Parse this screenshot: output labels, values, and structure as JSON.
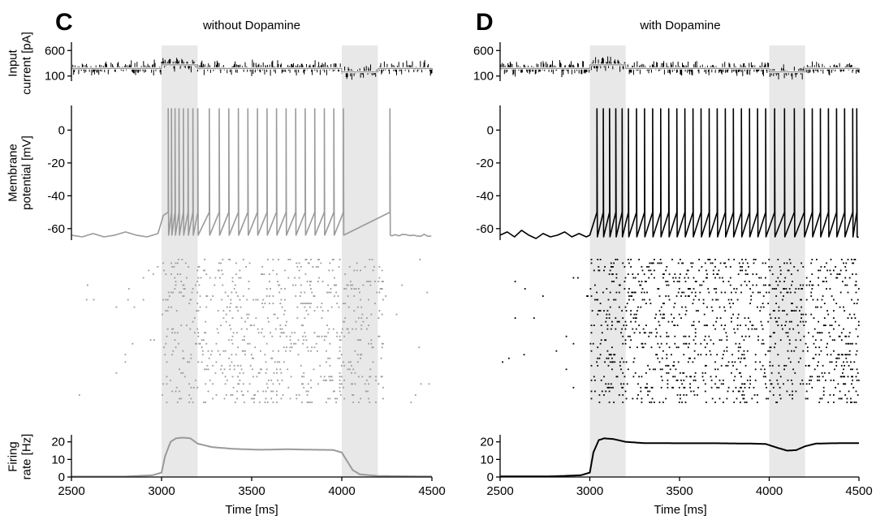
{
  "colors": {
    "without": "#9a9a9a",
    "with": "#000000",
    "shade": "#e8e8e8",
    "axis": "#000000"
  },
  "chart_data": [
    {
      "panel_label": "C",
      "title": "without Dopamine",
      "type": "line",
      "series_color": "#9a9a9a",
      "shaded_intervals_ms": [
        [
          3000,
          3200
        ],
        [
          4000,
          4200
        ]
      ],
      "subplots": [
        {
          "id": "input",
          "ylabel": [
            "Input",
            "current [pA]"
          ],
          "yticks": [
            100,
            600
          ],
          "ylim": [
            0,
            700
          ],
          "mean_level_pA": [
            [
              2500,
              250
            ],
            [
              3000,
              250
            ],
            [
              3000,
              320
            ],
            [
              3200,
              320
            ],
            [
              3200,
              250
            ],
            [
              4000,
              250
            ],
            [
              4000,
              180
            ],
            [
              4200,
              180
            ],
            [
              4200,
              250
            ],
            [
              4500,
              250
            ]
          ],
          "noise_amplitude_pA": 180
        },
        {
          "id": "membrane",
          "ylabel": [
            "Membrane",
            "potential [mV]"
          ],
          "yticks": [
            -60,
            -40,
            -20,
            0
          ],
          "ylim": [
            -67,
            15
          ],
          "rest_mV": -64,
          "spike_peak_mV": 13,
          "spike_times_ms": [
            3037,
            3055,
            3075,
            3097,
            3121,
            3147,
            3174,
            3201,
            3265,
            3320,
            3373,
            3426,
            3479,
            3532,
            3585,
            3638,
            3691,
            3744,
            3797,
            3850,
            3903,
            3956,
            4009,
            4267
          ],
          "subthreshold_trace_ms_mV": [
            [
              2500,
              -64
            ],
            [
              2560,
              -65
            ],
            [
              2620,
              -63
            ],
            [
              2680,
              -65
            ],
            [
              2740,
              -64
            ],
            [
              2800,
              -62
            ],
            [
              2860,
              -64
            ],
            [
              2920,
              -65
            ],
            [
              2980,
              -63
            ],
            [
              3010,
              -52
            ]
          ]
        },
        {
          "id": "raster",
          "type": "scatter",
          "n_neurons": 40,
          "active_interval_ms": [
            3000,
            4230
          ],
          "active_rate_hz": 15,
          "background_rate_hz": 1.2
        },
        {
          "id": "rate",
          "ylabel": [
            "Firing",
            "rate [Hz]"
          ],
          "xlabel": "Time [ms]",
          "xticks": [
            2500,
            3000,
            3500,
            4000,
            4500
          ],
          "xlim": [
            2500,
            4500
          ],
          "yticks": [
            0,
            10,
            20
          ],
          "ylim": [
            0,
            24
          ],
          "points": [
            [
              2500,
              0.3
            ],
            [
              2800,
              0.3
            ],
            [
              2950,
              1.0
            ],
            [
              3000,
              2.5
            ],
            [
              3020,
              12.0
            ],
            [
              3050,
              20.0
            ],
            [
              3080,
              22.0
            ],
            [
              3120,
              22.4
            ],
            [
              3160,
              22.0
            ],
            [
              3200,
              19.0
            ],
            [
              3280,
              17.0
            ],
            [
              3400,
              16.0
            ],
            [
              3550,
              15.5
            ],
            [
              3700,
              15.8
            ],
            [
              3850,
              15.5
            ],
            [
              3950,
              15.4
            ],
            [
              4000,
              14.0
            ],
            [
              4030,
              9.0
            ],
            [
              4060,
              4.0
            ],
            [
              4100,
              1.5
            ],
            [
              4200,
              0.6
            ],
            [
              4500,
              0.3
            ]
          ]
        }
      ]
    },
    {
      "panel_label": "D",
      "title": "with Dopamine",
      "type": "line",
      "series_color": "#000000",
      "shaded_intervals_ms": [
        [
          3000,
          3200
        ],
        [
          4000,
          4200
        ]
      ],
      "subplots": [
        {
          "id": "input",
          "yticks": [
            100,
            600
          ],
          "ylim": [
            0,
            700
          ],
          "mean_level_pA": [
            [
              2500,
              250
            ],
            [
              3000,
              250
            ],
            [
              3000,
              320
            ],
            [
              3200,
              320
            ],
            [
              3200,
              250
            ],
            [
              4000,
              250
            ],
            [
              4000,
              180
            ],
            [
              4200,
              180
            ],
            [
              4200,
              250
            ],
            [
              4500,
              250
            ]
          ],
          "noise_amplitude_pA": 180
        },
        {
          "id": "membrane",
          "yticks": [
            -60,
            -40,
            -20,
            0
          ],
          "ylim": [
            -67,
            15
          ],
          "rest_mV": -65,
          "spike_peak_mV": 13,
          "spike_times_ms": [
            3040,
            3075,
            3110,
            3145,
            3180,
            3215,
            3260,
            3305,
            3350,
            3395,
            3440,
            3485,
            3530,
            3575,
            3620,
            3665,
            3710,
            3755,
            3800,
            3845,
            3890,
            3935,
            3980,
            4030,
            4085,
            4140,
            4195,
            4240,
            4285,
            4330,
            4375,
            4420,
            4465,
            4488
          ],
          "subthreshold_trace_ms_mV": [
            [
              2500,
              -64
            ],
            [
              2540,
              -62
            ],
            [
              2580,
              -65
            ],
            [
              2620,
              -61
            ],
            [
              2660,
              -64
            ],
            [
              2700,
              -66
            ],
            [
              2740,
              -63
            ],
            [
              2780,
              -65
            ],
            [
              2820,
              -64
            ],
            [
              2860,
              -62
            ],
            [
              2900,
              -65
            ],
            [
              2940,
              -63
            ],
            [
              2980,
              -65
            ],
            [
              3000,
              -64
            ]
          ]
        },
        {
          "id": "raster",
          "type": "scatter",
          "n_neurons": 40,
          "active_interval_ms": [
            3000,
            4500
          ],
          "active_rate_hz": 20,
          "background_rate_hz": 1.2
        },
        {
          "id": "rate",
          "xlabel": "Time [ms]",
          "xticks": [
            2500,
            3000,
            3500,
            4000,
            4500
          ],
          "xlim": [
            2500,
            4500
          ],
          "yticks": [
            0,
            10,
            20
          ],
          "ylim": [
            0,
            24
          ],
          "points": [
            [
              2500,
              0.3
            ],
            [
              2800,
              0.4
            ],
            [
              2950,
              1.0
            ],
            [
              3000,
              2.5
            ],
            [
              3020,
              14.0
            ],
            [
              3050,
              21.0
            ],
            [
              3080,
              22.0
            ],
            [
              3130,
              21.6
            ],
            [
              3200,
              20.0
            ],
            [
              3300,
              19.3
            ],
            [
              3500,
              19.2
            ],
            [
              3700,
              19.2
            ],
            [
              3900,
              19.0
            ],
            [
              3980,
              18.8
            ],
            [
              4050,
              16.5
            ],
            [
              4100,
              15.0
            ],
            [
              4150,
              15.3
            ],
            [
              4200,
              17.5
            ],
            [
              4260,
              19.0
            ],
            [
              4350,
              19.2
            ],
            [
              4500,
              19.3
            ]
          ]
        }
      ]
    }
  ]
}
